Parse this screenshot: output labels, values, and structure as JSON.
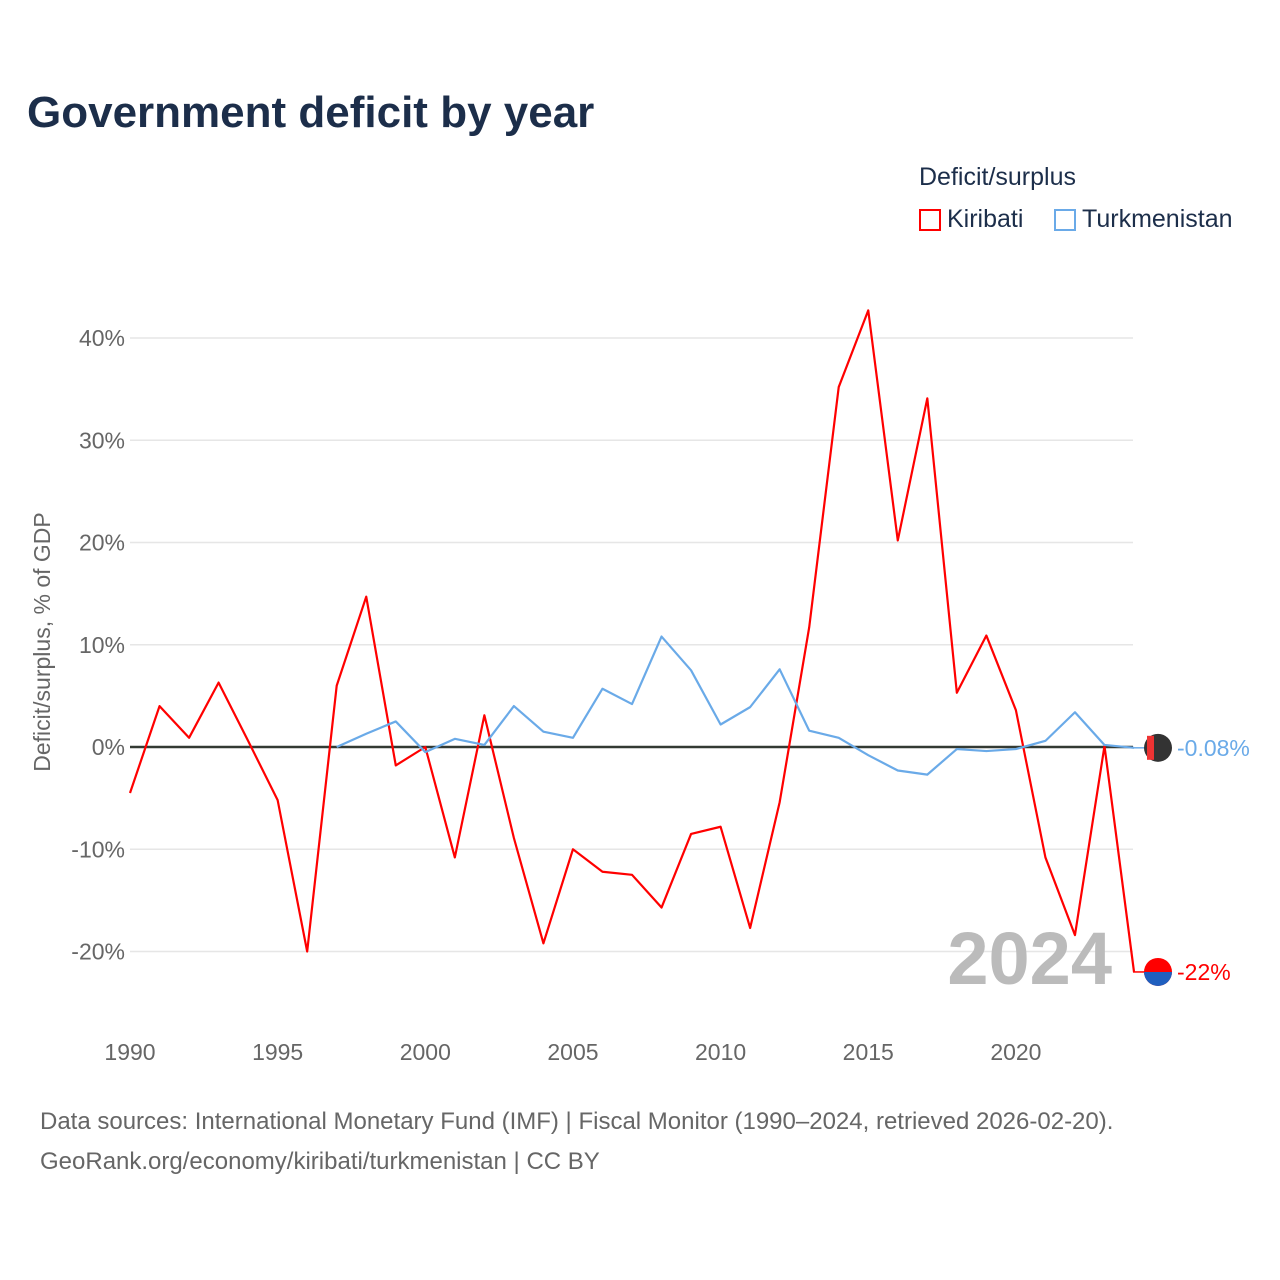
{
  "title": "Government deficit by year",
  "legend": {
    "title": "Deficit/surplus",
    "items": [
      {
        "name": "Kiribati",
        "color": "#ff0000"
      },
      {
        "name": "Turkmenistan",
        "color": "#6aaae8"
      }
    ]
  },
  "footer": {
    "line1": "Data sources: International Monetary Fund (IMF) | Fiscal Monitor (1990–2024, retrieved 2026-02-20).",
    "line2": "GeoRank.org/economy/kiribati/turkmenistan | CC BY"
  },
  "chart_data": {
    "type": "line",
    "title": "Government deficit by year",
    "xlabel": "",
    "ylabel": "Deficit/surplus, % of GDP",
    "xlim": [
      1990,
      2024
    ],
    "ylim": [
      -25,
      45
    ],
    "x_ticks": [
      1990,
      1995,
      2000,
      2005,
      2010,
      2015,
      2020
    ],
    "y_ticks": [
      -20,
      -10,
      0,
      10,
      20,
      30,
      40
    ],
    "y_tick_labels": [
      "-20%",
      "-10%",
      "0%",
      "10%",
      "20%",
      "30%",
      "40%"
    ],
    "year_watermark": "2024",
    "series": [
      {
        "name": "Kiribati",
        "color": "#ff0000",
        "end_label": "-22%",
        "x": [
          1990,
          1991,
          1992,
          1993,
          1994,
          1995,
          1996,
          1997,
          1998,
          1999,
          2000,
          2001,
          2002,
          2003,
          2004,
          2005,
          2006,
          2007,
          2008,
          2009,
          2010,
          2011,
          2012,
          2013,
          2014,
          2015,
          2016,
          2017,
          2018,
          2019,
          2020,
          2021,
          2022,
          2023,
          2024
        ],
        "values": [
          -4.5,
          4.0,
          0.9,
          6.3,
          0.6,
          -5.2,
          -20.0,
          6.0,
          14.7,
          -1.8,
          0.0,
          -10.8,
          3.1,
          -8.9,
          -19.2,
          -10.0,
          -12.2,
          -12.5,
          -15.7,
          -8.5,
          -7.8,
          -17.7,
          -5.4,
          11.7,
          35.2,
          42.7,
          20.2,
          34.1,
          5.3,
          10.9,
          3.6,
          -10.8,
          -18.4,
          0.1,
          -22.0
        ]
      },
      {
        "name": "Turkmenistan",
        "color": "#6aaae8",
        "end_label": "-0.08%",
        "x": [
          1997,
          1998,
          1999,
          2000,
          2001,
          2002,
          2003,
          2004,
          2005,
          2006,
          2007,
          2008,
          2009,
          2010,
          2011,
          2012,
          2013,
          2014,
          2015,
          2016,
          2017,
          2018,
          2019,
          2020,
          2021,
          2022,
          2023,
          2024
        ],
        "values": [
          0.0,
          1.3,
          2.5,
          -0.5,
          0.8,
          0.2,
          4.0,
          1.5,
          0.9,
          5.7,
          4.2,
          10.8,
          7.5,
          2.2,
          3.9,
          7.6,
          1.6,
          0.9,
          -0.8,
          -2.3,
          -2.7,
          -0.2,
          -0.4,
          -0.2,
          0.6,
          3.4,
          0.2,
          -0.08
        ]
      }
    ]
  }
}
